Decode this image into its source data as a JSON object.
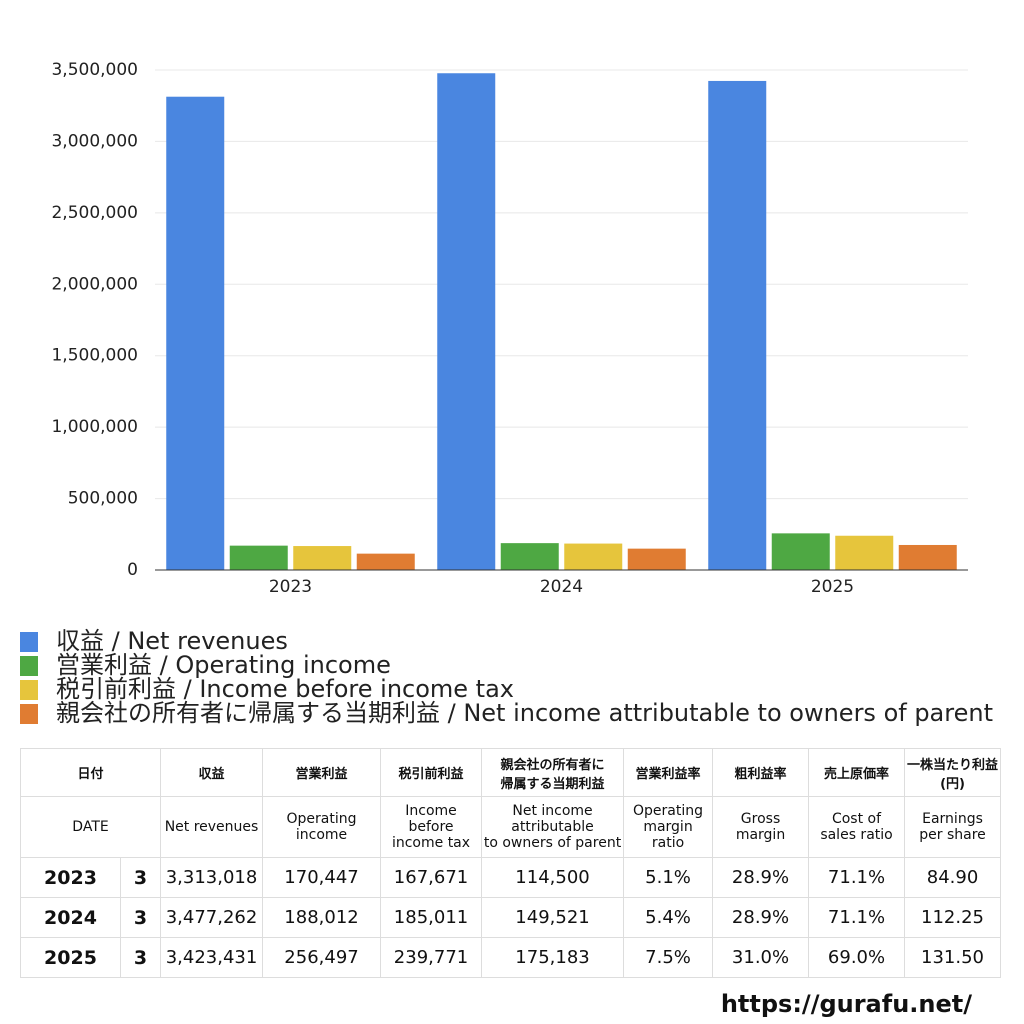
{
  "chart_data": {
    "type": "bar",
    "categories": [
      "2023",
      "2024",
      "2025"
    ],
    "series": [
      {
        "name": "収益 / Net revenues",
        "color": "#4a86e0",
        "values": [
          3313018,
          3477262,
          3423431
        ]
      },
      {
        "name": "営業利益 / Operating income",
        "color": "#4ea843",
        "values": [
          170447,
          188012,
          256497
        ]
      },
      {
        "name": "税引前利益 / Income before income tax",
        "color": "#e6c53c",
        "values": [
          167671,
          185011,
          239771
        ]
      },
      {
        "name": "親会社の所有者に帰属する当期利益 / Net income attributable to owners of parent",
        "color": "#e07c32",
        "values": [
          114500,
          149521,
          175183
        ]
      }
    ],
    "ylim": [
      0,
      3500000
    ],
    "yticks": [
      0,
      {
        "value": 500000,
        "label": "500,000"
      },
      {
        "value": 1000000,
        "label": "1,000,000"
      },
      {
        "value": 1500000,
        "label": "1,500,000"
      },
      {
        "value": 2000000,
        "label": "2,000,000"
      },
      {
        "value": 2500000,
        "label": "2,500,000"
      },
      {
        "value": 3000000,
        "label": "3,000,000"
      },
      {
        "value": 3500000,
        "label": "3,500,000"
      }
    ],
    "grid": true
  },
  "table": {
    "header": [
      "日付",
      "収益",
      "営業利益",
      "税引前利益",
      "親会社の所有者に\n帰属する当期利益",
      "営業利益率",
      "粗利益率",
      "売上原価率",
      "一株当たり利益\n(円)"
    ],
    "header_en": [
      "DATE",
      "Net revenues",
      "Operating\nincome",
      "Income before\nincome tax",
      "Net income attributable\nto owners of parent",
      "Operating\nmargin\nratio",
      "Gross\nmargin",
      "Cost of\nsales ratio",
      "Earnings\nper share"
    ],
    "rows": [
      [
        "2023",
        "3",
        "3,313,018",
        "170,447",
        "167,671",
        "114,500",
        "5.1%",
        "28.9%",
        "71.1%",
        "84.90"
      ],
      [
        "2024",
        "3",
        "3,477,262",
        "188,012",
        "185,011",
        "149,521",
        "5.4%",
        "28.9%",
        "71.1%",
        "112.25"
      ],
      [
        "2025",
        "3",
        "3,423,431",
        "256,497",
        "239,771",
        "175,183",
        "7.5%",
        "31.0%",
        "69.0%",
        "131.50"
      ]
    ]
  },
  "footer": "https://gurafu.net/"
}
